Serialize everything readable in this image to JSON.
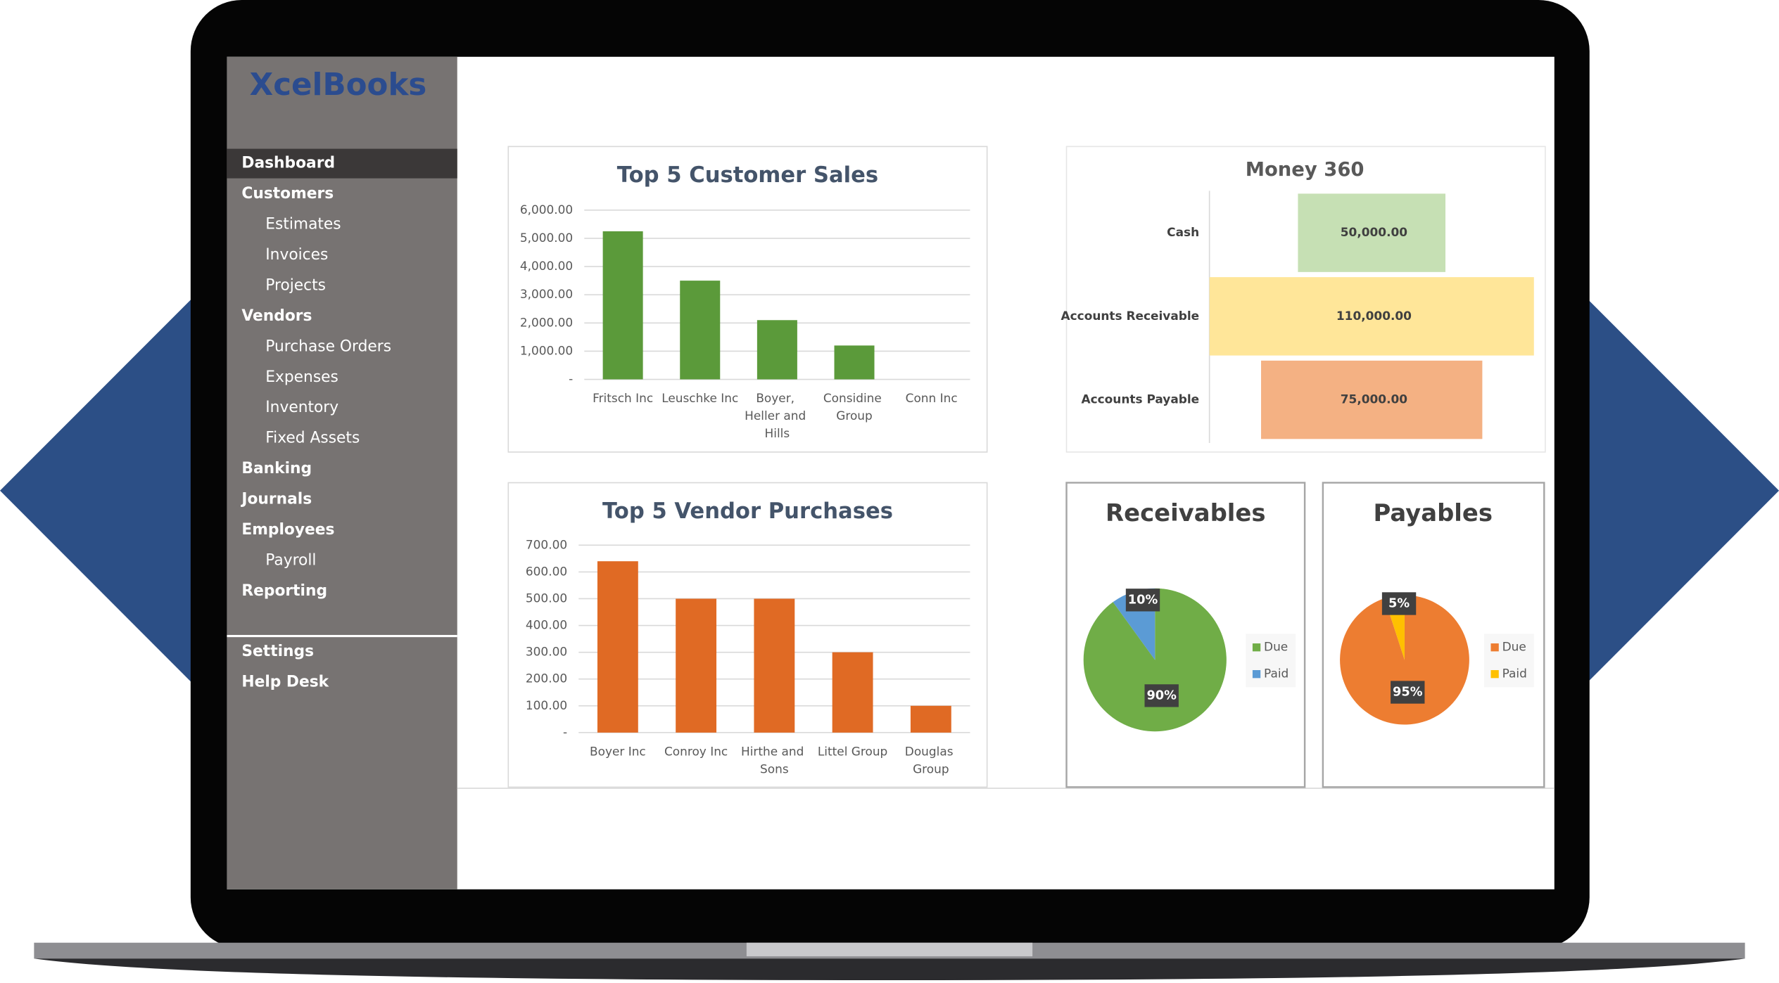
{
  "logo": "XcelBooks",
  "nav": [
    {
      "label": "Dashboard"
    },
    {
      "label": "Customers",
      "children": [
        "Estimates",
        "Invoices",
        "Projects"
      ]
    },
    {
      "label": "Vendors",
      "children": [
        "Purchase Orders",
        "Expenses",
        "Inventory",
        "Fixed Assets"
      ]
    },
    {
      "label": "Banking"
    },
    {
      "label": "Journals"
    },
    {
      "label": "Employees",
      "children": [
        "Payroll"
      ]
    },
    {
      "label": "Reporting"
    }
  ],
  "nav_bottom": [
    {
      "label": "Settings"
    },
    {
      "label": "Help Desk"
    }
  ],
  "chart_data": [
    {
      "type": "bar",
      "title": "Top 5 Customer Sales",
      "categories": [
        "Fritsch Inc",
        "Leuschke Inc",
        "Boyer, Heller and Hills",
        "Considine Group",
        "Conn Inc"
      ],
      "values": [
        5250,
        3500,
        2100,
        1200,
        0
      ],
      "color": "#5b9a3a",
      "ylim": [
        0,
        6000
      ],
      "yticks": [
        {
          "value": 0,
          "label": "-"
        },
        {
          "value": 1000,
          "label": "1,000.00"
        },
        {
          "value": 2000,
          "label": "2,000.00"
        },
        {
          "value": 3000,
          "label": "3,000.00"
        },
        {
          "value": 4000,
          "label": "4,000.00"
        },
        {
          "value": 5000,
          "label": "5,000.00"
        },
        {
          "value": 6000,
          "label": "6,000.00"
        }
      ],
      "grid": true
    },
    {
      "type": "bar",
      "title": "Top 5 Vendor Purchases",
      "categories": [
        "Boyer Inc",
        "Conroy Inc",
        "Hirthe and Sons",
        "Littel Group",
        "Douglas Group"
      ],
      "values": [
        640,
        500,
        500,
        300,
        100
      ],
      "color": "#e06a24",
      "ylim": [
        0,
        700
      ],
      "yticks": [
        {
          "value": 0,
          "label": "-"
        },
        {
          "value": 100,
          "label": "100.00"
        },
        {
          "value": 200,
          "label": "200.00"
        },
        {
          "value": 300,
          "label": "300.00"
        },
        {
          "value": 400,
          "label": "400.00"
        },
        {
          "value": 500,
          "label": "500.00"
        },
        {
          "value": 600,
          "label": "600.00"
        },
        {
          "value": 700,
          "label": "700.00"
        }
      ],
      "grid": true
    },
    {
      "type": "funnel",
      "title": "Money 360",
      "categories": [
        "Cash",
        "Accounts Receivable",
        "Accounts Payable"
      ],
      "values": [
        50000,
        110000,
        75000
      ],
      "value_labels": [
        "50,000.00",
        "110,000.00",
        "75,000.00"
      ],
      "colors": [
        "#c6e0b4",
        "#ffe699",
        "#f4b183"
      ]
    },
    {
      "type": "pie",
      "title": "Receivables",
      "categories": [
        "Due",
        "Paid"
      ],
      "values": [
        90,
        10
      ],
      "value_labels": [
        "90%",
        "10%"
      ],
      "colors": [
        "#70ad47",
        "#5b9bd5"
      ],
      "legend": "right"
    },
    {
      "type": "pie",
      "title": "Payables",
      "categories": [
        "Due",
        "Paid"
      ],
      "values": [
        95,
        5
      ],
      "value_labels": [
        "95%",
        "5%"
      ],
      "colors": [
        "#ed7d31",
        "#ffc000"
      ],
      "legend": "right"
    }
  ]
}
